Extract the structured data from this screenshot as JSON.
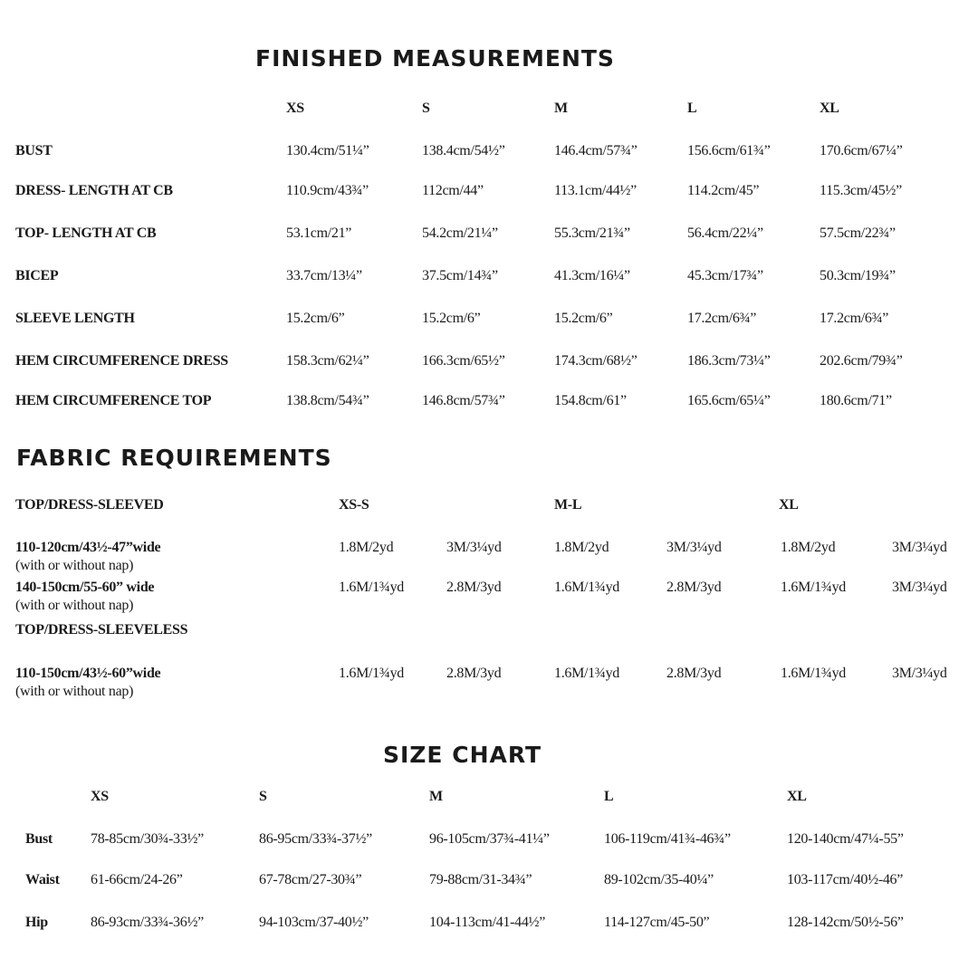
{
  "finished": {
    "title": "FINISHED MEASUREMENTS",
    "sizes": [
      "XS",
      "S",
      "M",
      "L",
      "XL"
    ],
    "rows": [
      {
        "label": "BUST",
        "values": [
          "130.4cm/51¼”",
          "138.4cm/54½”",
          "146.4cm/57¾”",
          "156.6cm/61¾”",
          "170.6cm/67¼”"
        ]
      },
      {
        "label": "DRESS- LENGTH AT CB",
        "values": [
          "110.9cm/43¾”",
          "112cm/44”",
          "113.1cm/44½”",
          "114.2cm/45”",
          "115.3cm/45½”"
        ]
      },
      {
        "label": "TOP- LENGTH AT CB",
        "values": [
          "53.1cm/21”",
          "54.2cm/21¼”",
          "55.3cm/21¾”",
          "56.4cm/22¼”",
          "57.5cm/22¾”"
        ]
      },
      {
        "label": "BICEP",
        "values": [
          "33.7cm/13¼”",
          "37.5cm/14¾”",
          "41.3cm/16¼”",
          "45.3cm/17¾”",
          "50.3cm/19¾”"
        ]
      },
      {
        "label": "SLEEVE LENGTH",
        "values": [
          "15.2cm/6”",
          "15.2cm/6”",
          "15.2cm/6”",
          "17.2cm/6¾”",
          "17.2cm/6¾”"
        ]
      },
      {
        "label": "HEM CIRCUMFERENCE DRESS",
        "values": [
          "158.3cm/62¼”",
          "166.3cm/65½”",
          "174.3cm/68½”",
          "186.3cm/73¼”",
          "202.6cm/79¾”"
        ]
      },
      {
        "label": "HEM CIRCUMFERENCE TOP",
        "values": [
          "138.8cm/54¾”",
          "146.8cm/57¾”",
          "154.8cm/61”",
          "165.6cm/65¼”",
          "180.6cm/71”"
        ]
      }
    ]
  },
  "fabric": {
    "title": "FABRIC REQUIREMENTS",
    "sleeved_label": "TOP/DRESS-SLEEVED",
    "size_groups": [
      "XS-S",
      "M-L",
      "XL"
    ],
    "sleeveless_label": "TOP/DRESS-SLEEVELESS",
    "rows": [
      {
        "width": "110-120cm/43½-47”wide",
        "note": " (with or without nap)",
        "values": [
          "1.8M/2yd",
          "3M/3¼yd",
          "1.8M/2yd",
          "3M/3¼yd",
          "1.8M/2yd",
          "3M/3¼yd"
        ]
      },
      {
        "width": "140-150cm/55-60” wide",
        "note": " (with or without nap)",
        "values": [
          "1.6M/1¾yd",
          "2.8M/3yd",
          "1.6M/1¾yd",
          "2.8M/3yd",
          "1.6M/1¾yd",
          "3M/3¼yd"
        ]
      },
      {
        "width": "110-150cm/43½-60”wide",
        "note": " (with or without nap)",
        "values": [
          "1.6M/1¾yd",
          "2.8M/3yd",
          "1.6M/1¾yd",
          "2.8M/3yd",
          "1.6M/1¾yd",
          "3M/3¼yd"
        ]
      }
    ]
  },
  "size_chart": {
    "title": "SIZE CHART",
    "sizes": [
      "XS",
      "S",
      "M",
      "L",
      "XL"
    ],
    "rows": [
      {
        "label": "Bust",
        "values": [
          "78-85cm/30¾-33½”",
          "86-95cm/33¾-37½”",
          "96-105cm/37¾-41¼”",
          "106-119cm/41¾-46¾”",
          "120-140cm/47¼-55”"
        ]
      },
      {
        "label": "Waist",
        "values": [
          "61-66cm/24-26”",
          "67-78cm/27-30¾”",
          "79-88cm/31-34¾”",
          "89-102cm/35-40¼”",
          "103-117cm/40½-46”"
        ]
      },
      {
        "label": "Hip",
        "values": [
          "86-93cm/33¾-36½”",
          "94-103cm/37-40½”",
          "104-113cm/41-44½”",
          "114-127cm/45-50”",
          "128-142cm/50½-56”"
        ]
      }
    ]
  }
}
